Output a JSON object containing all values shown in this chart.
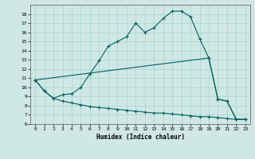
{
  "xlabel": "Humidex (Indice chaleur)",
  "xlim": [
    -0.5,
    23.5
  ],
  "ylim": [
    6,
    19
  ],
  "yticks": [
    6,
    7,
    8,
    9,
    10,
    11,
    12,
    13,
    14,
    15,
    16,
    17,
    18
  ],
  "xticks": [
    0,
    1,
    2,
    3,
    4,
    5,
    6,
    7,
    8,
    9,
    10,
    11,
    12,
    13,
    14,
    15,
    16,
    17,
    18,
    19,
    20,
    21,
    22,
    23
  ],
  "bg_color": "#cfe8e4",
  "line_color": "#006060",
  "line1_x": [
    0,
    1,
    2,
    3,
    4,
    5,
    6,
    7,
    8,
    9,
    10,
    11,
    12,
    13,
    14,
    15,
    16,
    17,
    18,
    19,
    20,
    21,
    22,
    23
  ],
  "line1_y": [
    10.8,
    9.6,
    8.8,
    9.2,
    9.3,
    10.0,
    11.5,
    12.9,
    14.5,
    15.0,
    15.5,
    17.0,
    16.0,
    16.5,
    17.5,
    18.3,
    18.3,
    17.7,
    15.3,
    13.2,
    8.7,
    8.5,
    6.5,
    6.5
  ],
  "line2_x": [
    0,
    19,
    20,
    21,
    22,
    23
  ],
  "line2_y": [
    10.8,
    13.2,
    8.7,
    8.5,
    6.5,
    6.5
  ],
  "line3_x": [
    0,
    1,
    2,
    3,
    4,
    5,
    6,
    7,
    8,
    9,
    10,
    11,
    12,
    13,
    14,
    15,
    16,
    17,
    18,
    19,
    20,
    21,
    22,
    23
  ],
  "line3_y": [
    10.8,
    9.6,
    8.8,
    8.5,
    8.3,
    8.1,
    7.9,
    7.8,
    7.7,
    7.6,
    7.5,
    7.4,
    7.3,
    7.2,
    7.2,
    7.1,
    7.0,
    6.9,
    6.8,
    6.8,
    6.7,
    6.6,
    6.5,
    6.5
  ]
}
